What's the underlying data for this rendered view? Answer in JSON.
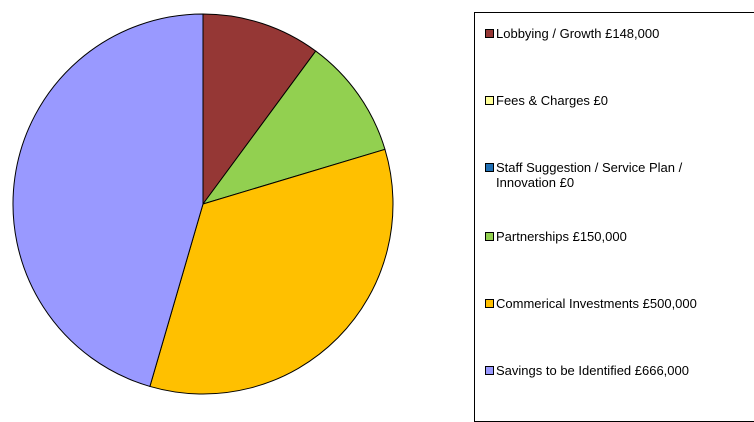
{
  "chart_data": {
    "type": "pie",
    "title": "",
    "slices": [
      {
        "label": "Lobbying / Growth £148,000",
        "value": 148000,
        "color": "#953735"
      },
      {
        "label": "Fees & Charges £0",
        "value": 0,
        "color": "#FFFF99"
      },
      {
        "label": "Staff Suggestion / Service Plan / Innovation £0",
        "value": 0,
        "color": "#1F6FB4"
      },
      {
        "label": "Partnerships £150,000",
        "value": 150000,
        "color": "#92D050"
      },
      {
        "label": "Commerical Investments £500,000",
        "value": 500000,
        "color": "#FFC000"
      },
      {
        "label": "Savings to be Identified £666,000",
        "value": 666000,
        "color": "#9999FF"
      }
    ],
    "start_angle": "12 o'clock",
    "direction": "clockwise",
    "legend_position": "right"
  }
}
